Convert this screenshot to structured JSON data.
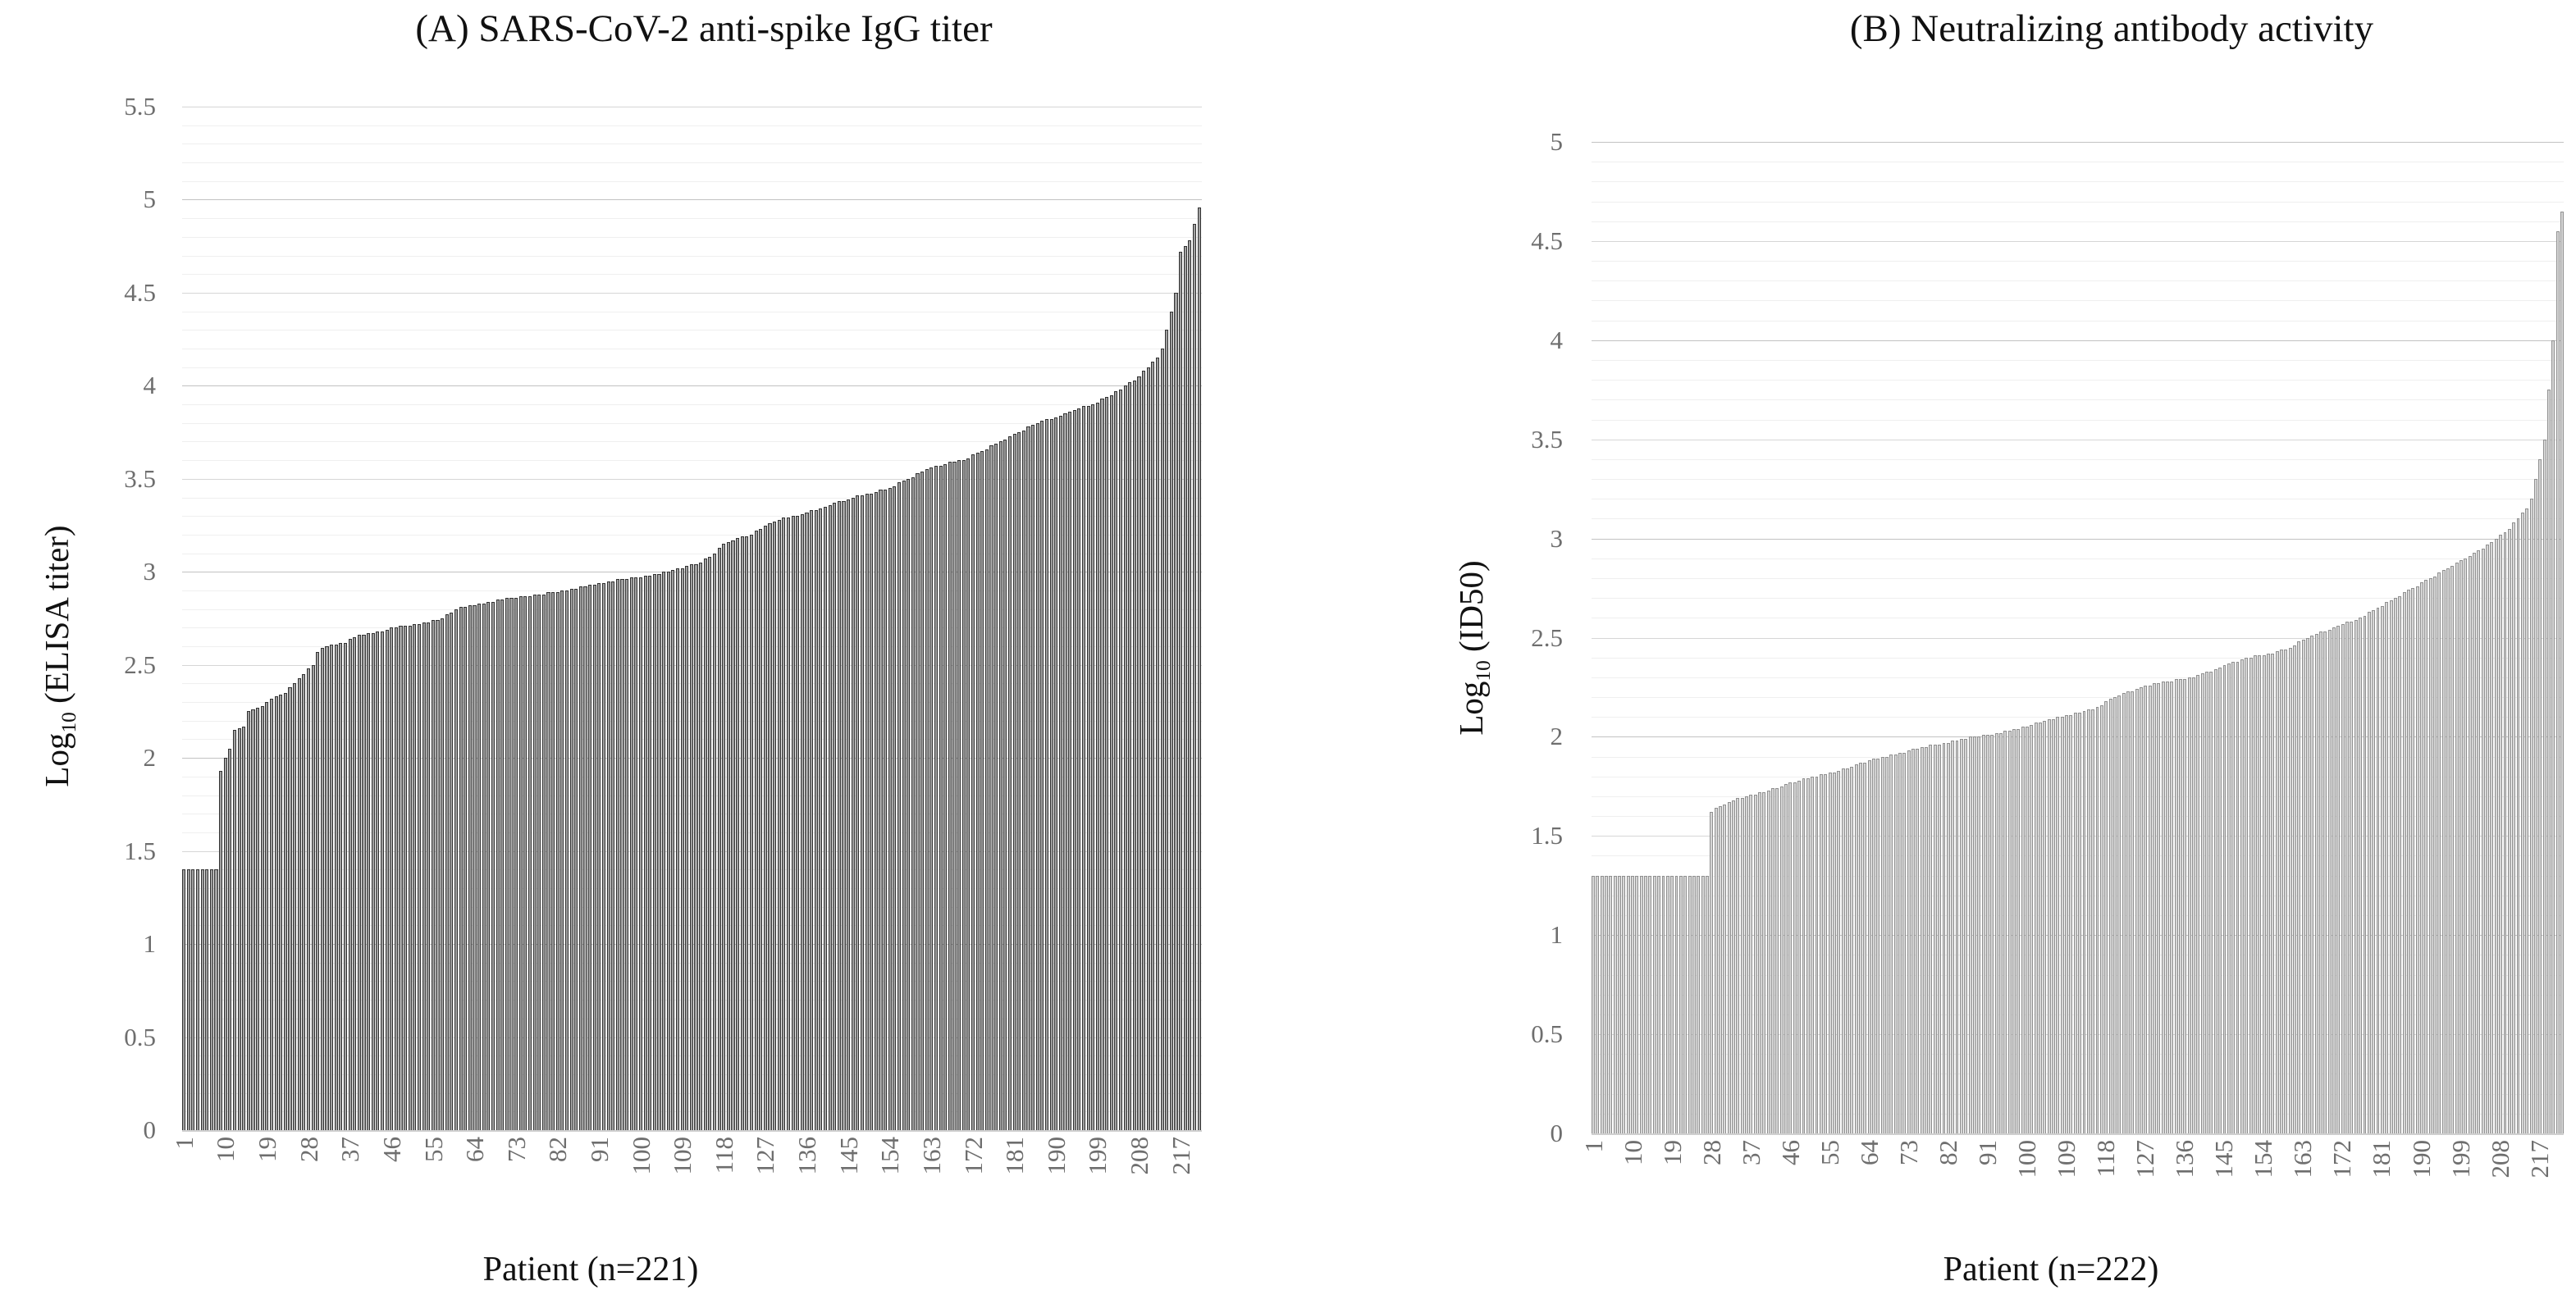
{
  "page": {
    "background": "#ffffff"
  },
  "chart_data": [
    {
      "type": "bar",
      "panel": "A",
      "title": "(A) SARS-CoV-2 anti-spike IgG titer",
      "xlabel": "Patient (n=221)",
      "ylabel": "Log10 (ELISA titer)",
      "ylabel_parts": {
        "pre": "Log",
        "sub": "10",
        "post": " (ELISA titer)"
      },
      "ylim": [
        0,
        5.5
      ],
      "y_tick_step": 0.5,
      "y_tick_labels": [
        "0",
        "0.5",
        "1",
        "1.5",
        "2",
        "2.5",
        "3",
        "3.5",
        "4",
        "4.5",
        "5",
        "5.5"
      ],
      "minor_gridline_step": 0.1,
      "major_gridline_step": 0.5,
      "grid_on": true,
      "legend": "none",
      "x_tick_interval": 9,
      "x_tick_labels": [
        "1",
        "10",
        "19",
        "28",
        "37",
        "46",
        "55",
        "64",
        "73",
        "82",
        "91",
        "100",
        "109",
        "118",
        "127",
        "136",
        "145",
        "154",
        "163",
        "172",
        "181",
        "190",
        "199",
        "208",
        "217"
      ],
      "n_bars": 221,
      "bar_fill": "#a0a0a0",
      "bar_border": "#333333",
      "values": [
        1.4,
        1.4,
        1.4,
        1.4,
        1.4,
        1.4,
        1.4,
        1.4,
        1.93,
        2.0,
        2.05,
        2.15,
        2.16,
        2.17,
        2.25,
        2.26,
        2.27,
        2.28,
        2.3,
        2.32,
        2.33,
        2.34,
        2.35,
        2.38,
        2.4,
        2.43,
        2.45,
        2.48,
        2.5,
        2.57,
        2.59,
        2.6,
        2.61,
        2.61,
        2.62,
        2.62,
        2.64,
        2.65,
        2.66,
        2.66,
        2.67,
        2.67,
        2.68,
        2.68,
        2.69,
        2.7,
        2.7,
        2.71,
        2.71,
        2.71,
        2.72,
        2.72,
        2.73,
        2.73,
        2.74,
        2.74,
        2.75,
        2.77,
        2.78,
        2.8,
        2.81,
        2.81,
        2.82,
        2.82,
        2.83,
        2.83,
        2.84,
        2.84,
        2.85,
        2.85,
        2.86,
        2.86,
        2.86,
        2.87,
        2.87,
        2.87,
        2.88,
        2.88,
        2.88,
        2.89,
        2.89,
        2.89,
        2.9,
        2.9,
        2.91,
        2.91,
        2.92,
        2.92,
        2.93,
        2.93,
        2.94,
        2.94,
        2.95,
        2.95,
        2.96,
        2.96,
        2.96,
        2.97,
        2.97,
        2.97,
        2.98,
        2.98,
        2.99,
        2.99,
        3.0,
        3.0,
        3.01,
        3.02,
        3.02,
        3.03,
        3.04,
        3.04,
        3.05,
        3.07,
        3.08,
        3.1,
        3.13,
        3.15,
        3.16,
        3.17,
        3.18,
        3.19,
        3.19,
        3.2,
        3.22,
        3.23,
        3.25,
        3.26,
        3.27,
        3.28,
        3.29,
        3.29,
        3.3,
        3.3,
        3.31,
        3.32,
        3.33,
        3.33,
        3.34,
        3.35,
        3.36,
        3.37,
        3.38,
        3.38,
        3.39,
        3.4,
        3.41,
        3.41,
        3.42,
        3.42,
        3.43,
        3.44,
        3.44,
        3.45,
        3.46,
        3.48,
        3.49,
        3.5,
        3.51,
        3.53,
        3.54,
        3.55,
        3.56,
        3.57,
        3.57,
        3.58,
        3.59,
        3.59,
        3.6,
        3.6,
        3.61,
        3.63,
        3.64,
        3.65,
        3.66,
        3.68,
        3.69,
        3.7,
        3.71,
        3.73,
        3.74,
        3.75,
        3.76,
        3.78,
        3.79,
        3.8,
        3.81,
        3.82,
        3.82,
        3.83,
        3.84,
        3.85,
        3.86,
        3.87,
        3.88,
        3.89,
        3.89,
        3.9,
        3.91,
        3.93,
        3.94,
        3.95,
        3.97,
        3.98,
        4.0,
        4.02,
        4.03,
        4.05,
        4.08,
        4.1,
        4.13,
        4.15,
        4.2,
        4.3,
        4.4,
        4.5,
        4.72,
        4.75,
        4.78,
        4.87,
        4.96
      ]
    },
    {
      "type": "bar",
      "panel": "B",
      "title": "(B) Neutralizing antibody activity",
      "xlabel": "Patient (n=222)",
      "ylabel": "Log10 (ID50)",
      "ylabel_parts": {
        "pre": "Log",
        "sub": "10",
        "post": " (ID50)"
      },
      "ylim": [
        0,
        5
      ],
      "y_tick_step": 0.5,
      "y_tick_labels": [
        "0",
        "0.5",
        "1",
        "1.5",
        "2",
        "2.5",
        "3",
        "3.5",
        "4",
        "4.5",
        "5"
      ],
      "minor_gridline_step": 0.1,
      "major_gridline_step": 0.5,
      "grid_on": true,
      "legend": "none",
      "x_tick_interval": 9,
      "x_tick_labels": [
        "1",
        "10",
        "19",
        "28",
        "37",
        "46",
        "55",
        "64",
        "73",
        "82",
        "91",
        "100",
        "109",
        "118",
        "127",
        "136",
        "145",
        "154",
        "163",
        "172",
        "181",
        "190",
        "199",
        "208",
        "217"
      ],
      "n_bars": 222,
      "bar_fill": "#d6d6d6",
      "bar_border": "#909090",
      "values": [
        1.3,
        1.3,
        1.3,
        1.3,
        1.3,
        1.3,
        1.3,
        1.3,
        1.3,
        1.3,
        1.3,
        1.3,
        1.3,
        1.3,
        1.3,
        1.3,
        1.3,
        1.3,
        1.3,
        1.3,
        1.3,
        1.3,
        1.3,
        1.3,
        1.3,
        1.3,
        1.3,
        1.62,
        1.64,
        1.65,
        1.66,
        1.67,
        1.68,
        1.69,
        1.69,
        1.7,
        1.71,
        1.71,
        1.72,
        1.72,
        1.73,
        1.74,
        1.74,
        1.75,
        1.76,
        1.77,
        1.77,
        1.78,
        1.79,
        1.79,
        1.8,
        1.8,
        1.81,
        1.81,
        1.82,
        1.82,
        1.83,
        1.84,
        1.84,
        1.85,
        1.86,
        1.87,
        1.87,
        1.88,
        1.89,
        1.89,
        1.9,
        1.9,
        1.91,
        1.91,
        1.92,
        1.92,
        1.93,
        1.94,
        1.94,
        1.95,
        1.95,
        1.96,
        1.96,
        1.96,
        1.97,
        1.97,
        1.98,
        1.98,
        1.99,
        1.99,
        2.0,
        2.0,
        2.0,
        2.01,
        2.01,
        2.01,
        2.02,
        2.02,
        2.03,
        2.03,
        2.04,
        2.04,
        2.05,
        2.05,
        2.06,
        2.07,
        2.07,
        2.08,
        2.09,
        2.09,
        2.1,
        2.1,
        2.11,
        2.11,
        2.12,
        2.12,
        2.13,
        2.14,
        2.14,
        2.15,
        2.16,
        2.18,
        2.19,
        2.2,
        2.21,
        2.22,
        2.23,
        2.23,
        2.24,
        2.25,
        2.26,
        2.26,
        2.27,
        2.27,
        2.28,
        2.28,
        2.28,
        2.29,
        2.29,
        2.29,
        2.3,
        2.3,
        2.31,
        2.32,
        2.33,
        2.33,
        2.34,
        2.35,
        2.36,
        2.37,
        2.38,
        2.38,
        2.39,
        2.4,
        2.4,
        2.41,
        2.41,
        2.41,
        2.42,
        2.42,
        2.43,
        2.44,
        2.44,
        2.45,
        2.46,
        2.48,
        2.49,
        2.5,
        2.51,
        2.52,
        2.53,
        2.53,
        2.54,
        2.55,
        2.56,
        2.57,
        2.58,
        2.58,
        2.59,
        2.6,
        2.61,
        2.63,
        2.64,
        2.65,
        2.66,
        2.68,
        2.69,
        2.7,
        2.71,
        2.73,
        2.74,
        2.75,
        2.76,
        2.78,
        2.79,
        2.8,
        2.81,
        2.83,
        2.84,
        2.85,
        2.86,
        2.88,
        2.89,
        2.9,
        2.91,
        2.93,
        2.94,
        2.95,
        2.97,
        2.98,
        3.0,
        3.02,
        3.03,
        3.05,
        3.08,
        3.1,
        3.13,
        3.15,
        3.2,
        3.3,
        3.4,
        3.5,
        3.75,
        4.0,
        4.55,
        4.65
      ]
    }
  ]
}
